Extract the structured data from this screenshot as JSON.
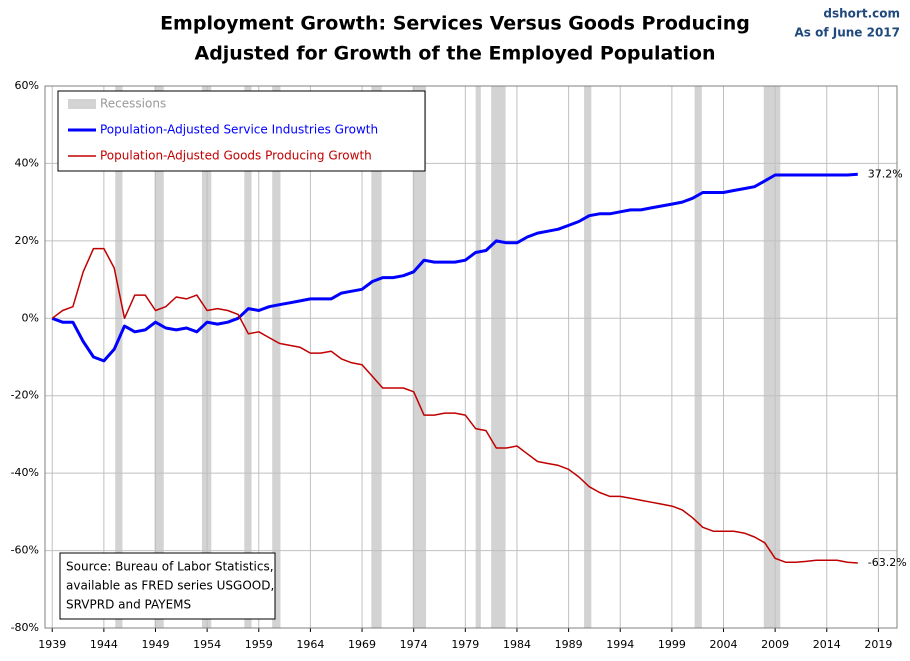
{
  "chart_data": {
    "type": "line",
    "title": "Employment Growth: Services Versus Goods Producing",
    "subtitle": "Adjusted for Growth of the Employed Population",
    "source_name": "dshort.com",
    "as_of": "As of June 2017",
    "source_lines": [
      "Source: Bureau of Labor Statistics,",
      "available as FRED series USGOOD,",
      "SRVPRD and PAYEMS"
    ],
    "recession_label": "Recessions",
    "recession_color": "#d3d3d3",
    "recessions": [
      [
        1945.1,
        1945.8
      ],
      [
        1948.9,
        1949.8
      ],
      [
        1953.5,
        1954.4
      ],
      [
        1957.6,
        1958.3
      ],
      [
        1960.3,
        1961.1
      ],
      [
        1969.9,
        1970.9
      ],
      [
        1973.9,
        1975.2
      ],
      [
        1980.0,
        1980.5
      ],
      [
        1981.5,
        1982.9
      ],
      [
        1990.5,
        1991.2
      ],
      [
        2001.2,
        2001.9
      ],
      [
        2007.9,
        2009.5
      ]
    ],
    "x": [
      1939,
      1940,
      1941,
      1942,
      1943,
      1944,
      1945,
      1946,
      1947,
      1948,
      1949,
      1950,
      1951,
      1952,
      1953,
      1954,
      1955,
      1956,
      1957,
      1958,
      1959,
      1960,
      1961,
      1962,
      1963,
      1964,
      1965,
      1966,
      1967,
      1968,
      1969,
      1970,
      1971,
      1972,
      1973,
      1974,
      1975,
      1976,
      1977,
      1978,
      1979,
      1980,
      1981,
      1982,
      1983,
      1984,
      1985,
      1986,
      1987,
      1988,
      1989,
      1990,
      1991,
      1992,
      1993,
      1994,
      1995,
      1996,
      1997,
      1998,
      1999,
      2000,
      2001,
      2002,
      2003,
      2004,
      2005,
      2006,
      2007,
      2008,
      2009,
      2010,
      2011,
      2012,
      2013,
      2014,
      2015,
      2016,
      2017
    ],
    "series": [
      {
        "name": "Population-Adjusted Service Industries Growth",
        "color": "#0000ff",
        "width": 3,
        "values": [
          0,
          -1,
          -1,
          -6,
          -10,
          -11,
          -8,
          -2,
          -3.5,
          -3,
          -1,
          -2.5,
          -3,
          -2.5,
          -3.5,
          -1,
          -1.5,
          -1,
          0,
          2.5,
          2,
          3,
          3.5,
          4,
          4.5,
          5,
          5,
          5,
          6.5,
          7,
          7.5,
          9.5,
          10.5,
          10.5,
          11,
          12,
          15,
          14.5,
          14.5,
          14.5,
          15,
          17,
          17.5,
          20,
          19.5,
          19.5,
          21,
          22,
          22.5,
          23,
          24,
          25,
          26.5,
          27,
          27,
          27.5,
          28,
          28,
          28.5,
          29,
          29.5,
          30,
          31,
          32.5,
          32.5,
          32.5,
          33,
          33.5,
          34,
          35.5,
          37,
          37,
          37,
          37,
          37,
          37,
          37,
          37,
          37.2
        ],
        "value_labels": [
          null,
          null,
          null,
          null,
          null,
          null,
          null,
          null,
          null,
          null,
          null,
          null,
          null,
          null,
          null,
          null,
          null,
          null,
          null,
          null,
          null,
          null,
          null,
          null,
          null,
          null,
          null,
          null,
          null,
          null,
          null,
          null,
          null,
          null,
          null,
          null,
          null,
          null,
          null,
          null,
          null,
          null,
          null,
          null,
          null,
          null,
          null,
          null,
          null,
          null,
          null,
          null,
          null,
          null,
          null,
          null,
          null,
          null,
          null,
          null,
          null,
          null,
          null,
          null,
          null,
          null,
          null,
          null,
          null,
          null,
          null,
          null,
          null,
          null,
          null,
          null,
          null,
          null,
          "37.2%"
        ]
      },
      {
        "name": "Population-Adjusted Goods Producing Growth",
        "color": "#c00000",
        "width": 1.5,
        "values": [
          0,
          2,
          3,
          12,
          18,
          18,
          13,
          0,
          6,
          6,
          2,
          3,
          5.5,
          5,
          6,
          2,
          2.5,
          2,
          1,
          -4,
          -3.5,
          -5,
          -6.5,
          -7,
          -7.5,
          -9,
          -9,
          -8.5,
          -10.5,
          -11.5,
          -12,
          -15,
          -18,
          -18,
          -18,
          -19,
          -25,
          -25,
          -24.5,
          -24.5,
          -25,
          -28.5,
          -29,
          -33.5,
          -33.5,
          -33,
          -35,
          -37,
          -37.5,
          -38,
          -39,
          -41,
          -43.5,
          -45,
          -46,
          -46,
          -46.5,
          -47,
          -47.5,
          -48,
          -48.5,
          -49.5,
          -51.5,
          -54,
          -55,
          -55,
          -55,
          -55.5,
          -56.5,
          -58,
          -62,
          -63,
          -63,
          -62.8,
          -62.5,
          -62.5,
          -62.5,
          -63,
          -63.2
        ],
        "value_labels": [
          null,
          null,
          null,
          null,
          null,
          null,
          null,
          null,
          null,
          null,
          null,
          null,
          null,
          null,
          null,
          null,
          null,
          null,
          null,
          null,
          null,
          null,
          null,
          null,
          null,
          null,
          null,
          null,
          null,
          null,
          null,
          null,
          null,
          null,
          null,
          null,
          null,
          null,
          null,
          null,
          null,
          null,
          null,
          null,
          null,
          null,
          null,
          null,
          null,
          null,
          null,
          null,
          null,
          null,
          null,
          null,
          null,
          null,
          null,
          null,
          null,
          null,
          null,
          null,
          null,
          null,
          null,
          null,
          null,
          null,
          null,
          null,
          null,
          null,
          null,
          null,
          null,
          null,
          "-63.2%"
        ]
      }
    ],
    "xlim": [
      1938.3,
      2020.8
    ],
    "xticks": [
      1939,
      1944,
      1949,
      1954,
      1959,
      1964,
      1969,
      1974,
      1979,
      1984,
      1989,
      1994,
      1999,
      2004,
      2009,
      2014,
      2019
    ],
    "ylim": [
      -80,
      60
    ],
    "yticks": [
      {
        "value": -80,
        "label": "-80%"
      },
      {
        "value": -60,
        "label": "-60%"
      },
      {
        "value": -40,
        "label": "-40%"
      },
      {
        "value": -20,
        "label": "-20%"
      },
      {
        "value": 0,
        "label": "0%"
      },
      {
        "value": 20,
        "label": "20%"
      },
      {
        "value": 40,
        "label": "40%"
      },
      {
        "value": 60,
        "label": "60%"
      }
    ],
    "grid": true
  }
}
